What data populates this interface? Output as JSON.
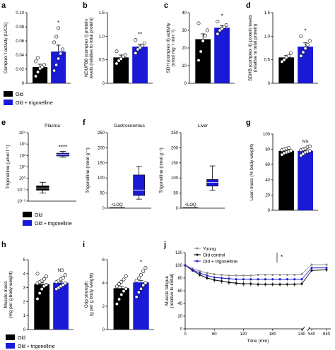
{
  "colors": {
    "old": "#000000",
    "treated": "#1a1ad6",
    "young": "#8c8c8c"
  },
  "legend_labels": [
    "Old",
    "Old + trigonelline"
  ],
  "panel_j_legend": [
    "Young",
    "Old control",
    "Old + trigonelline"
  ],
  "panel_j_sig": "*",
  "chart_data": [
    {
      "panel": "a",
      "type": "bar",
      "ylabel": "Complex I activity (U/CS)",
      "yticks": [
        "0",
        "0.02",
        "0.04",
        "0.06",
        "0.08",
        "0.10"
      ],
      "ylim": [
        0,
        0.1
      ],
      "categories": [
        "Old",
        "Old + trigonelline"
      ],
      "values": [
        0.023,
        0.045
      ],
      "errors": [
        0.004,
        0.009
      ],
      "points": [
        [
          0.01,
          0.016,
          0.021,
          0.023,
          0.026,
          0.031,
          0.036
        ],
        [
          0.018,
          0.026,
          0.035,
          0.042,
          0.048,
          0.058,
          0.066,
          0.078
        ]
      ],
      "significance": "*"
    },
    {
      "panel": "b",
      "type": "bar",
      "ylabel": "NDUFB8 (complex I) protein levels (relative to total protein)",
      "yticks": [
        "0",
        "0.5",
        "1.0",
        "1.5"
      ],
      "ylim": [
        0,
        1.5
      ],
      "categories": [
        "Old",
        "Old + trigonelline"
      ],
      "values": [
        0.55,
        0.78
      ],
      "errors": [
        0.05,
        0.05
      ],
      "points": [
        [
          0.42,
          0.48,
          0.52,
          0.57,
          0.6,
          0.68
        ],
        [
          0.64,
          0.72,
          0.76,
          0.8,
          0.85,
          0.92
        ]
      ],
      "significance": "**"
    },
    {
      "panel": "c",
      "type": "bar",
      "ylabel": "SDH (complex II) activity (nmol mg⁻¹ min⁻¹)",
      "yticks": [
        "0",
        "10",
        "20",
        "30",
        "40"
      ],
      "ylim": [
        0,
        40
      ],
      "categories": [
        "Old",
        "Old + trigonelline"
      ],
      "values": [
        25,
        31.5
      ],
      "errors": [
        3,
        1.2
      ],
      "points": [
        [
          13,
          18,
          24,
          27,
          30,
          34
        ],
        [
          28,
          30,
          31,
          32,
          33,
          35
        ]
      ],
      "significance": "*"
    },
    {
      "panel": "d",
      "type": "bar",
      "ylabel": "SDHB (complex II) protein levels (relative to total protein)",
      "yticks": [
        "0",
        "0.5",
        "1.0",
        "1.5"
      ],
      "ylim": [
        0,
        1.5
      ],
      "categories": [
        "Old",
        "Old + trigonelline"
      ],
      "values": [
        0.55,
        0.78
      ],
      "errors": [
        0.04,
        0.08
      ],
      "points": [
        [
          0.46,
          0.5,
          0.55,
          0.58,
          0.64
        ],
        [
          0.58,
          0.66,
          0.74,
          0.82,
          0.9,
          1.0
        ]
      ],
      "significance": "*"
    },
    {
      "panel": "e",
      "type": "box",
      "title": "Plasma",
      "ylabel": "Trigonelline (µmol l⁻¹)",
      "yscale": "log",
      "ylim": [
        0.01,
        10000
      ],
      "yticks": [
        "10⁻²",
        "10⁻¹",
        "10⁰",
        "10¹",
        "10²",
        "10³",
        "10⁴"
      ],
      "categories": [
        "Old",
        "Old + trigonelline"
      ],
      "boxes": [
        {
          "whisker_low": 0.05,
          "q1": 0.09,
          "median": 0.14,
          "q3": 0.22,
          "whisker_high": 0.45
        },
        {
          "whisker_low": 70,
          "q1": 90,
          "median": 120,
          "q3": 160,
          "whisker_high": 230
        }
      ],
      "significance": "****"
    },
    {
      "panel": "f",
      "type": "box",
      "title": "Gastrocnemius",
      "ylabel": "Trigonelline (nmol g⁻¹)",
      "yticks": [
        "0",
        "50",
        "100",
        "150",
        "200",
        "250"
      ],
      "ylim": [
        0,
        250
      ],
      "categories": [
        "Old",
        "Old + trigonelline"
      ],
      "boxes": [
        null,
        {
          "whisker_low": 30,
          "q1": 42,
          "median": 60,
          "q3": 110,
          "whisker_high": 138
        }
      ],
      "annotation": "<LOQ"
    },
    {
      "panel": "f2",
      "type": "box",
      "title": "Liver",
      "ylabel": "Trigonelline (nmol g⁻¹)",
      "yticks": [
        "0",
        "50",
        "100",
        "150",
        "200",
        "250"
      ],
      "ylim": [
        0,
        250
      ],
      "categories": [
        "Old",
        "Old + trigonelline"
      ],
      "boxes": [
        null,
        {
          "whisker_low": 60,
          "q1": 73,
          "median": 85,
          "q3": 95,
          "whisker_high": 140
        }
      ],
      "annotation": "<LOQ"
    },
    {
      "panel": "g",
      "type": "bar",
      "ylabel": "Lean mass (% body weight)",
      "yticks": [
        "0",
        "20",
        "40",
        "60",
        "80",
        "100"
      ],
      "ylim": [
        0,
        100
      ],
      "categories": [
        "Old",
        "Old + trigonelline"
      ],
      "values": [
        78,
        78
      ],
      "errors": [
        1.2,
        1.2
      ],
      "points": [
        [
          73,
          75,
          76,
          77,
          78,
          79,
          80,
          81,
          82
        ],
        [
          72,
          74,
          76,
          77,
          78,
          79,
          80,
          81,
          83,
          84
        ]
      ],
      "significance": "NS"
    },
    {
      "panel": "h",
      "type": "bar",
      "ylabel": "Muscle mass (mg per g body weight)",
      "yticks": [
        "0",
        "1",
        "2",
        "3",
        "4",
        "5"
      ],
      "ylim": [
        0,
        5
      ],
      "categories": [
        "Old",
        "Old + trigonelline"
      ],
      "values": [
        3.25,
        3.35
      ],
      "errors": [
        0.12,
        0.08
      ],
      "points": [
        [
          2.2,
          2.6,
          2.9,
          3.1,
          3.2,
          3.3,
          3.4,
          3.5,
          3.6,
          3.8,
          4.0
        ],
        [
          2.9,
          3.0,
          3.1,
          3.2,
          3.3,
          3.4,
          3.5,
          3.6,
          3.7,
          3.9
        ]
      ],
      "significance": "NS"
    },
    {
      "panel": "i",
      "type": "bar",
      "ylabel": "Grip strength (g per g body weight)",
      "yticks": [
        "0",
        "2",
        "4",
        "6"
      ],
      "ylim": [
        0,
        6
      ],
      "categories": [
        "Old",
        "Old + trigonelline"
      ],
      "values": [
        3.55,
        4.05
      ],
      "errors": [
        0.15,
        0.15
      ],
      "points": [
        [
          2.2,
          2.6,
          3.0,
          3.3,
          3.5,
          3.7,
          3.9,
          4.1,
          4.3,
          4.6
        ],
        [
          2.8,
          3.2,
          3.5,
          3.8,
          4.0,
          4.2,
          4.4,
          4.7,
          5.0,
          5.3
        ]
      ],
      "significance": "*"
    },
    {
      "panel": "j",
      "type": "line",
      "xlabel": "Time (min)",
      "ylabel": "Muscle fatigue (relative to initial)",
      "yticks": [
        "0",
        "20",
        "40",
        "60",
        "80",
        "100",
        "120"
      ],
      "ylim": [
        0,
        120
      ],
      "xticks": [
        "0",
        "60",
        "120",
        "180",
        "240",
        "540",
        "840"
      ],
      "segment1_x": [
        0,
        15,
        30,
        45,
        60,
        75,
        90,
        105,
        120,
        135,
        150,
        165,
        180,
        195,
        210,
        225,
        240
      ],
      "segment2_x": [
        540,
        840
      ],
      "series": [
        {
          "name": "Young",
          "y1": [
            100,
            95,
            91,
            88,
            86,
            85,
            84,
            84,
            84,
            84,
            85,
            85,
            85,
            85,
            85,
            85,
            86
          ],
          "err1": [
            0,
            1,
            1,
            1,
            1,
            1,
            1,
            1,
            1,
            1,
            1,
            1,
            1,
            1,
            1,
            1,
            1
          ],
          "y2": [
            101,
            101
          ],
          "err2": [
            2,
            2
          ]
        },
        {
          "name": "Old control",
          "y1": [
            100,
            92,
            85,
            80,
            77,
            75,
            73,
            72,
            71,
            71,
            70,
            70,
            70,
            70,
            70,
            70,
            71
          ],
          "err1": [
            0,
            2,
            3,
            3,
            4,
            4,
            4,
            4,
            4,
            4,
            3,
            3,
            3,
            3,
            3,
            3,
            3
          ],
          "y2": [
            92,
            93
          ],
          "err2": [
            3,
            3
          ]
        },
        {
          "name": "Old + trigonelline",
          "y1": [
            100,
            93,
            88,
            84,
            81,
            80,
            79,
            78,
            78,
            78,
            78,
            78,
            78,
            78,
            78,
            78,
            78
          ],
          "err1": [
            0,
            1,
            2,
            2,
            2,
            2,
            2,
            2,
            2,
            2,
            2,
            2,
            2,
            2,
            2,
            2,
            2
          ],
          "y2": [
            96,
            96
          ],
          "err2": [
            2,
            2
          ]
        }
      ]
    }
  ]
}
